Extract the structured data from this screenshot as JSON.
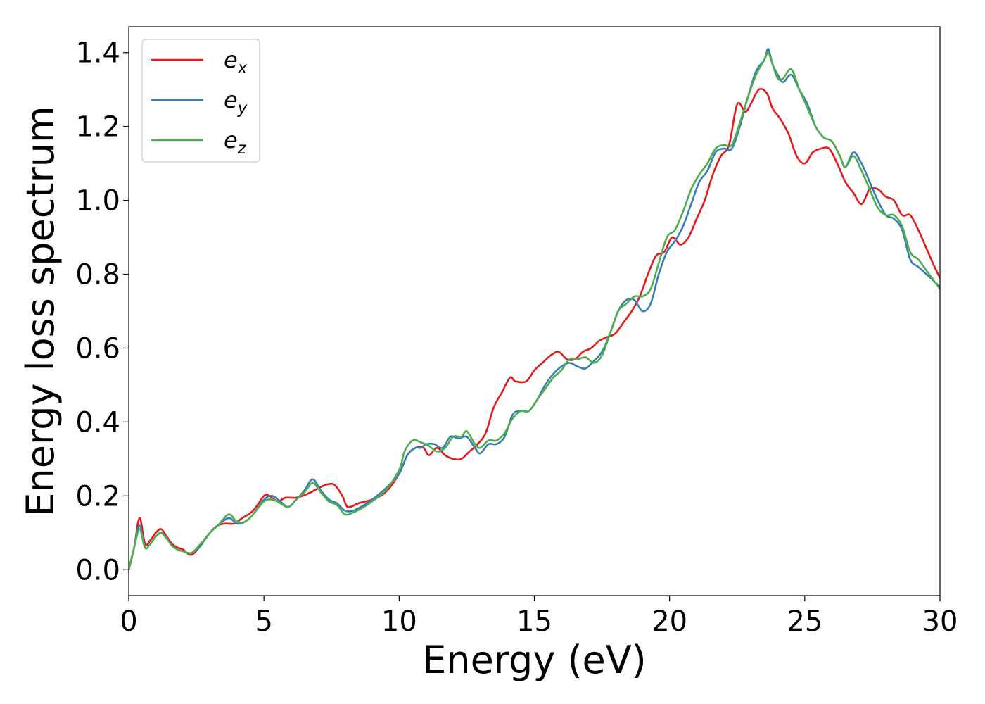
{
  "chart_data": {
    "type": "line",
    "xlabel": "Energy (eV)",
    "ylabel": "Energy loss spectrum",
    "xlim": [
      0,
      30
    ],
    "ylim": [
      -0.07,
      1.47
    ],
    "xticks": [
      "0",
      "5",
      "10",
      "15",
      "20",
      "25",
      "30"
    ],
    "yticks": [
      "0.0",
      "0.2",
      "0.4",
      "0.6",
      "0.8",
      "1.0",
      "1.2",
      "1.4"
    ],
    "grid": false,
    "legend_position": "top-left",
    "series": [
      {
        "name": "e_x",
        "label_base": "e",
        "label_sub": "x",
        "color": "#e41a1c",
        "x": [
          0,
          0.2,
          0.4,
          0.6,
          0.8,
          1.0,
          1.2,
          1.4,
          1.6,
          1.8,
          2.0,
          2.3,
          2.6,
          3.0,
          3.3,
          3.6,
          3.9,
          4.2,
          4.6,
          5.0,
          5.2,
          5.5,
          5.8,
          6.2,
          6.6,
          7.0,
          7.3,
          7.6,
          7.9,
          8.1,
          8.5,
          9.0,
          9.5,
          10.0,
          10.3,
          10.6,
          10.9,
          11.1,
          11.4,
          11.7,
          12.0,
          12.3,
          12.6,
          12.9,
          13.2,
          13.5,
          13.8,
          14.1,
          14.3,
          14.7,
          15.0,
          15.3,
          15.6,
          15.9,
          16.2,
          16.5,
          16.8,
          17.1,
          17.4,
          17.7,
          18.0,
          18.3,
          18.6,
          18.9,
          19.2,
          19.5,
          19.8,
          20.1,
          20.4,
          20.7,
          21.0,
          21.3,
          21.6,
          21.9,
          22.2,
          22.5,
          22.8,
          23.0,
          23.3,
          23.6,
          23.8,
          24.1,
          24.4,
          24.7,
          25.0,
          25.3,
          25.6,
          25.9,
          26.2,
          26.5,
          26.8,
          27.1,
          27.4,
          27.7,
          28.0,
          28.3,
          28.6,
          28.9,
          29.2,
          29.5,
          29.8,
          30.0
        ],
        "y": [
          0.0,
          0.06,
          0.14,
          0.07,
          0.08,
          0.1,
          0.11,
          0.09,
          0.07,
          0.06,
          0.055,
          0.04,
          0.06,
          0.1,
          0.12,
          0.125,
          0.125,
          0.14,
          0.16,
          0.2,
          0.2,
          0.185,
          0.195,
          0.195,
          0.205,
          0.22,
          0.23,
          0.23,
          0.2,
          0.17,
          0.18,
          0.19,
          0.21,
          0.26,
          0.31,
          0.33,
          0.33,
          0.31,
          0.33,
          0.31,
          0.3,
          0.3,
          0.32,
          0.34,
          0.37,
          0.44,
          0.48,
          0.52,
          0.51,
          0.51,
          0.54,
          0.56,
          0.58,
          0.59,
          0.57,
          0.57,
          0.59,
          0.6,
          0.62,
          0.63,
          0.64,
          0.67,
          0.7,
          0.74,
          0.8,
          0.85,
          0.86,
          0.9,
          0.88,
          0.9,
          0.95,
          1.0,
          1.07,
          1.12,
          1.15,
          1.26,
          1.24,
          1.26,
          1.3,
          1.29,
          1.25,
          1.22,
          1.18,
          1.12,
          1.1,
          1.13,
          1.14,
          1.14,
          1.1,
          1.05,
          1.02,
          0.99,
          1.03,
          1.03,
          1.01,
          1.0,
          0.96,
          0.96,
          0.92,
          0.87,
          0.82,
          0.79
        ]
      },
      {
        "name": "e_y",
        "label_base": "e",
        "label_sub": "y",
        "color": "#377eb8",
        "x": [
          0,
          0.2,
          0.4,
          0.6,
          0.8,
          1.0,
          1.2,
          1.4,
          1.6,
          1.8,
          2.0,
          2.3,
          2.6,
          3.0,
          3.3,
          3.7,
          4.0,
          4.3,
          4.6,
          5.0,
          5.3,
          5.6,
          5.9,
          6.2,
          6.5,
          6.8,
          7.1,
          7.4,
          7.7,
          8.0,
          8.3,
          8.7,
          9.0,
          9.5,
          10.0,
          10.3,
          10.6,
          10.8,
          11.0,
          11.3,
          11.6,
          11.9,
          12.2,
          12.5,
          12.8,
          13.0,
          13.3,
          13.6,
          13.9,
          14.2,
          14.5,
          14.8,
          15.1,
          15.4,
          15.7,
          16.0,
          16.3,
          16.6,
          16.9,
          17.2,
          17.5,
          17.8,
          18.1,
          18.4,
          18.7,
          19.0,
          19.3,
          19.6,
          19.9,
          20.2,
          20.5,
          20.8,
          21.1,
          21.4,
          21.7,
          22.0,
          22.3,
          22.6,
          22.9,
          23.2,
          23.5,
          23.65,
          23.8,
          24.0,
          24.2,
          24.5,
          24.8,
          25.1,
          25.4,
          25.7,
          26.0,
          26.3,
          26.5,
          26.8,
          27.1,
          27.4,
          27.7,
          28.0,
          28.3,
          28.6,
          28.9,
          29.2,
          29.5,
          29.8,
          30.0
        ],
        "y": [
          0.0,
          0.06,
          0.12,
          0.06,
          0.07,
          0.09,
          0.1,
          0.085,
          0.065,
          0.055,
          0.05,
          0.045,
          0.06,
          0.1,
          0.12,
          0.14,
          0.125,
          0.13,
          0.15,
          0.19,
          0.2,
          0.185,
          0.17,
          0.19,
          0.215,
          0.245,
          0.215,
          0.19,
          0.18,
          0.16,
          0.16,
          0.175,
          0.19,
          0.22,
          0.26,
          0.31,
          0.33,
          0.33,
          0.34,
          0.34,
          0.33,
          0.36,
          0.355,
          0.36,
          0.33,
          0.315,
          0.34,
          0.34,
          0.36,
          0.42,
          0.43,
          0.43,
          0.46,
          0.5,
          0.53,
          0.55,
          0.56,
          0.55,
          0.545,
          0.565,
          0.59,
          0.64,
          0.7,
          0.73,
          0.73,
          0.7,
          0.72,
          0.8,
          0.86,
          0.89,
          0.93,
          0.99,
          1.05,
          1.08,
          1.13,
          1.14,
          1.14,
          1.2,
          1.28,
          1.35,
          1.38,
          1.41,
          1.37,
          1.34,
          1.32,
          1.34,
          1.3,
          1.26,
          1.2,
          1.17,
          1.16,
          1.12,
          1.09,
          1.13,
          1.1,
          1.05,
          1.0,
          0.96,
          0.95,
          0.92,
          0.84,
          0.82,
          0.8,
          0.78,
          0.765
        ]
      },
      {
        "name": "e_z",
        "label_base": "e",
        "label_sub": "z",
        "color": "#4daf4a",
        "x": [
          0,
          0.2,
          0.4,
          0.6,
          0.8,
          1.0,
          1.2,
          1.4,
          1.6,
          1.8,
          2.0,
          2.3,
          2.6,
          3.0,
          3.3,
          3.7,
          4.0,
          4.3,
          4.6,
          5.0,
          5.3,
          5.6,
          5.9,
          6.2,
          6.5,
          6.8,
          7.1,
          7.4,
          7.7,
          8.0,
          8.3,
          8.7,
          9.0,
          9.5,
          10.0,
          10.2,
          10.5,
          10.8,
          11.1,
          11.4,
          11.7,
          12.0,
          12.3,
          12.5,
          12.8,
          13.0,
          13.3,
          13.6,
          13.9,
          14.2,
          14.5,
          14.8,
          15.1,
          15.4,
          15.7,
          16.0,
          16.3,
          16.6,
          16.9,
          17.2,
          17.5,
          17.8,
          18.1,
          18.4,
          18.7,
          19.0,
          19.3,
          19.6,
          19.9,
          20.2,
          20.5,
          20.8,
          21.1,
          21.4,
          21.7,
          22.0,
          22.3,
          22.6,
          22.9,
          23.2,
          23.5,
          23.65,
          23.8,
          24.0,
          24.2,
          24.5,
          24.8,
          25.1,
          25.4,
          25.7,
          26.0,
          26.3,
          26.5,
          26.8,
          27.1,
          27.4,
          27.7,
          28.0,
          28.3,
          28.6,
          28.9,
          29.2,
          29.5,
          29.8,
          30.0
        ],
        "y": [
          0.0,
          0.06,
          0.11,
          0.06,
          0.07,
          0.09,
          0.1,
          0.085,
          0.065,
          0.055,
          0.05,
          0.045,
          0.065,
          0.1,
          0.12,
          0.15,
          0.13,
          0.13,
          0.15,
          0.185,
          0.19,
          0.18,
          0.17,
          0.19,
          0.21,
          0.235,
          0.21,
          0.185,
          0.175,
          0.15,
          0.155,
          0.17,
          0.185,
          0.215,
          0.27,
          0.32,
          0.35,
          0.345,
          0.335,
          0.32,
          0.33,
          0.36,
          0.36,
          0.375,
          0.34,
          0.33,
          0.35,
          0.35,
          0.37,
          0.41,
          0.43,
          0.43,
          0.46,
          0.49,
          0.52,
          0.54,
          0.57,
          0.57,
          0.575,
          0.56,
          0.58,
          0.64,
          0.7,
          0.72,
          0.74,
          0.74,
          0.76,
          0.83,
          0.9,
          0.92,
          0.97,
          1.03,
          1.07,
          1.1,
          1.14,
          1.15,
          1.15,
          1.21,
          1.28,
          1.34,
          1.38,
          1.4,
          1.37,
          1.33,
          1.33,
          1.355,
          1.3,
          1.25,
          1.2,
          1.17,
          1.16,
          1.12,
          1.09,
          1.12,
          1.08,
          1.03,
          0.98,
          0.96,
          0.96,
          0.93,
          0.86,
          0.84,
          0.81,
          0.78,
          0.76
        ]
      }
    ]
  }
}
